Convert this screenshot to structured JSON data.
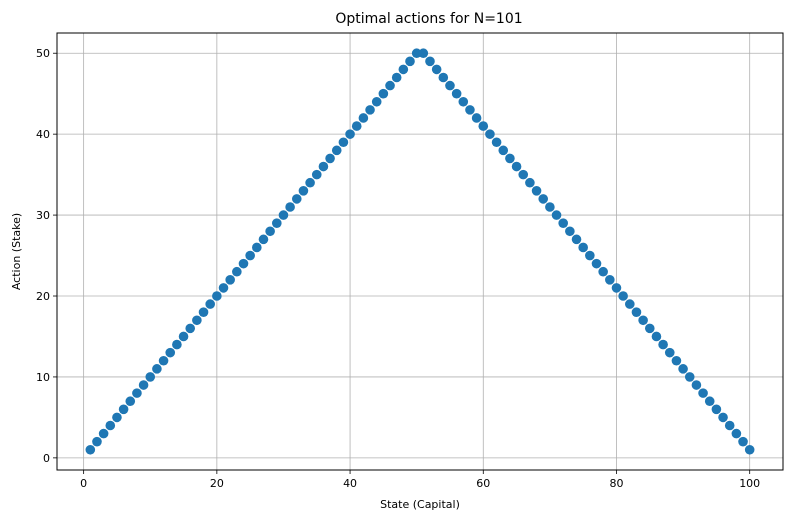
{
  "chart_data": {
    "type": "scatter",
    "title": "Optimal actions for N=101",
    "xlabel": "State (Capital)",
    "ylabel": "Action (Stake)",
    "xlim": [
      -4,
      105
    ],
    "ylim": [
      -1.5,
      52.5
    ],
    "xticks": [
      0,
      20,
      40,
      60,
      80,
      100
    ],
    "yticks": [
      0,
      10,
      20,
      30,
      40,
      50
    ],
    "grid": true,
    "marker_color": "#1f77b4",
    "series": [
      {
        "x": [
          1,
          2,
          3,
          4,
          5,
          6,
          7,
          8,
          9,
          10,
          11,
          12,
          13,
          14,
          15,
          16,
          17,
          18,
          19,
          20,
          21,
          22,
          23,
          24,
          25,
          26,
          27,
          28,
          29,
          30,
          31,
          32,
          33,
          34,
          35,
          36,
          37,
          38,
          39,
          40,
          41,
          42,
          43,
          44,
          45,
          46,
          47,
          48,
          49,
          50,
          51,
          52,
          53,
          54,
          55,
          56,
          57,
          58,
          59,
          60,
          61,
          62,
          63,
          64,
          65,
          66,
          67,
          68,
          69,
          70,
          71,
          72,
          73,
          74,
          75,
          76,
          77,
          78,
          79,
          80,
          81,
          82,
          83,
          84,
          85,
          86,
          87,
          88,
          89,
          90,
          91,
          92,
          93,
          94,
          95,
          96,
          97,
          98,
          99,
          100
        ],
        "y": [
          1,
          2,
          3,
          4,
          5,
          6,
          7,
          8,
          9,
          10,
          11,
          12,
          13,
          14,
          15,
          16,
          17,
          18,
          19,
          20,
          21,
          22,
          23,
          24,
          25,
          26,
          27,
          28,
          29,
          30,
          31,
          32,
          33,
          34,
          35,
          36,
          37,
          38,
          39,
          40,
          41,
          42,
          43,
          44,
          45,
          46,
          47,
          48,
          49,
          50,
          50,
          49,
          48,
          47,
          46,
          45,
          44,
          43,
          42,
          41,
          40,
          39,
          38,
          37,
          36,
          35,
          34,
          33,
          32,
          31,
          30,
          29,
          28,
          27,
          26,
          25,
          24,
          23,
          22,
          21,
          20,
          19,
          18,
          17,
          16,
          15,
          14,
          13,
          12,
          11,
          10,
          9,
          8,
          7,
          6,
          5,
          4,
          3,
          2,
          1
        ]
      }
    ]
  }
}
